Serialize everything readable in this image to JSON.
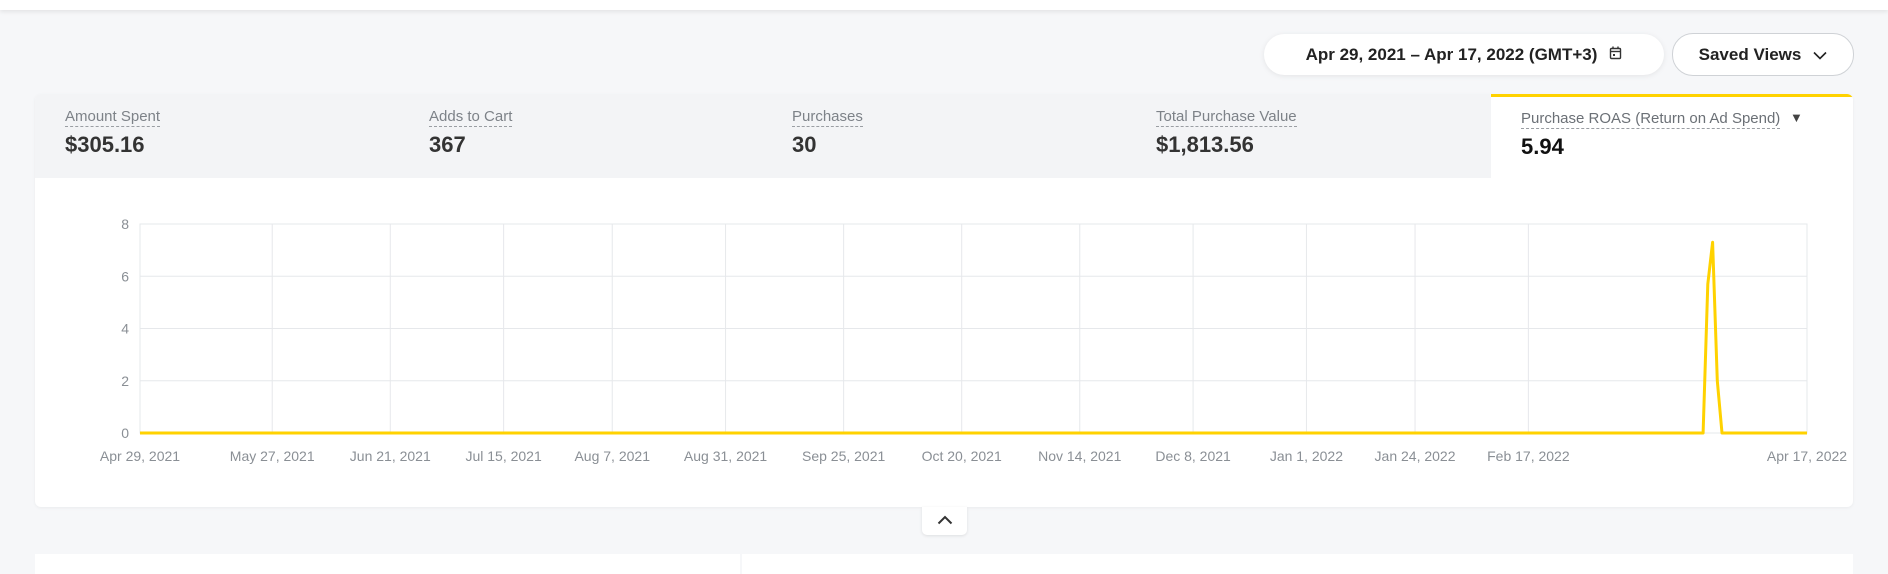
{
  "toolbar": {
    "date_range": "Apr 29, 2021 – Apr 17, 2022 (GMT+3)",
    "date_icon": "calendar-icon",
    "saved_views_label": "Saved Views",
    "saved_views_icon": "chevron-down-icon"
  },
  "metrics": [
    {
      "label": "Amount Spent",
      "value": "$305.16",
      "active": false
    },
    {
      "label": "Adds to Cart",
      "value": "367",
      "active": false
    },
    {
      "label": "Purchases",
      "value": "30",
      "active": false
    },
    {
      "label": "Total Purchase Value",
      "value": "$1,813.56",
      "active": false
    },
    {
      "label": "Purchase ROAS (Return on Ad Spend)",
      "value": "5.94",
      "active": true
    }
  ],
  "colors": {
    "accent": "#ffd200",
    "background": "#f6f7f9",
    "grid": "#e6e8eb",
    "tick_text": "#8a8f95"
  },
  "chart_data": {
    "type": "line",
    "title": "",
    "xlabel": "",
    "ylabel": "",
    "x_range": [
      "2021-04-29",
      "2022-04-17"
    ],
    "ylim": [
      0,
      8
    ],
    "yticks": [
      0,
      2,
      4,
      6,
      8
    ],
    "xtick_dates": [
      "2021-04-29",
      "2021-05-27",
      "2021-06-21",
      "2021-07-15",
      "2021-08-07",
      "2021-08-31",
      "2021-09-25",
      "2021-10-20",
      "2021-11-14",
      "2021-12-08",
      "2022-01-01",
      "2022-01-24",
      "2022-02-17",
      "2022-04-17"
    ],
    "xtick_labels": [
      "Apr 29, 2021",
      "May 27, 2021",
      "Jun 21, 2021",
      "Jul 15, 2021",
      "Aug 7, 2021",
      "Aug 31, 2021",
      "Sep 25, 2021",
      "Oct 20, 2021",
      "Nov 14, 2021",
      "Dec 8, 2021",
      "Jan 1, 2022",
      "Jan 24, 2022",
      "Feb 17, 2022",
      "Apr 17, 2022"
    ],
    "grid": true,
    "series": [
      {
        "color": "#ffd200",
        "points": [
          [
            "2021-04-29",
            0
          ],
          [
            "2022-03-26",
            0
          ],
          [
            "2022-03-27",
            5.7
          ],
          [
            "2022-03-28",
            7.3
          ],
          [
            "2022-03-29",
            2.0
          ],
          [
            "2022-03-30",
            0
          ],
          [
            "2022-04-17",
            0
          ]
        ]
      }
    ]
  },
  "collapse_icon": "chevron-up-icon"
}
